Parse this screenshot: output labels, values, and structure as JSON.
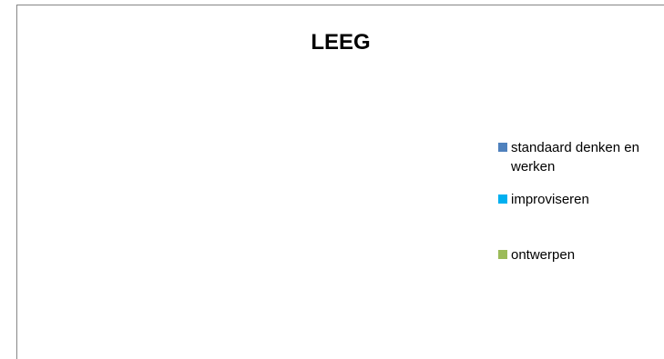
{
  "chart_data": {
    "type": "pie",
    "title": "LEEG",
    "legend_position": "right",
    "series": [
      {
        "name": "standaard denken en werken",
        "color": "#4F81BD",
        "value": 0
      },
      {
        "name": "improviseren",
        "color": "#00B0F0",
        "value": 0
      },
      {
        "name": "ontwerpen",
        "color": "#9BBB59",
        "value": 0
      }
    ]
  }
}
